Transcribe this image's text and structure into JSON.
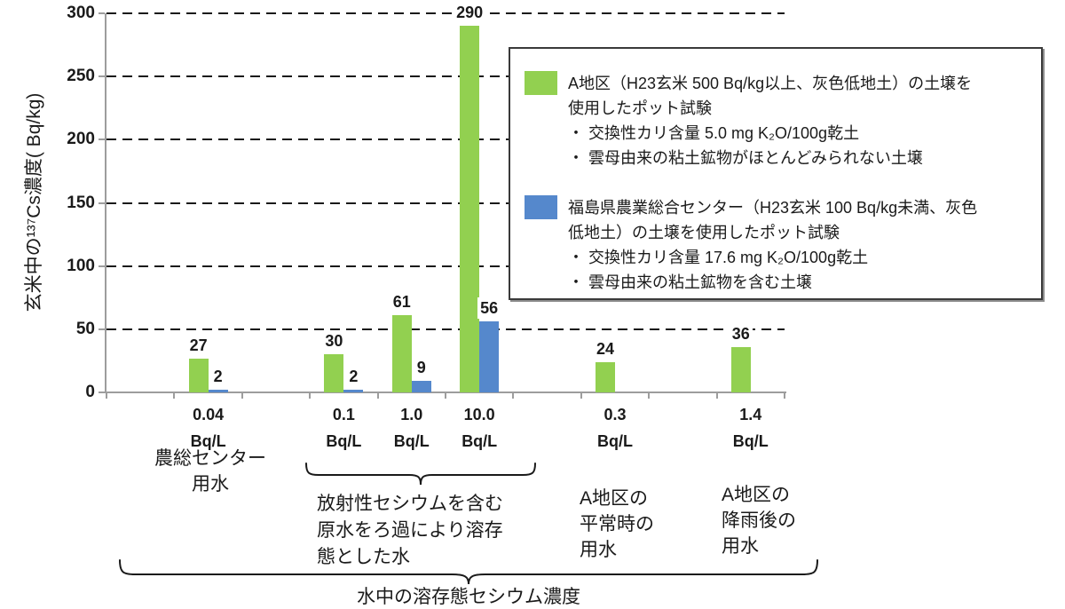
{
  "chart_data": {
    "type": "bar",
    "title": "",
    "ylabel": "玄米中の¹³⁷Cs濃度( Bq/kg)",
    "xlabel": "",
    "ylim": [
      0,
      300
    ],
    "yticks": [
      0,
      50,
      100,
      150,
      200,
      250,
      300
    ],
    "grid": "horizontal-dashed",
    "legend_position": "top-right-box",
    "slots": 10,
    "categories": [
      {
        "slot": 2,
        "tick_label": [
          "0.04",
          "Bq/L"
        ]
      },
      {
        "slot": 4,
        "tick_label": [
          "0.1",
          "Bq/L"
        ]
      },
      {
        "slot": 5,
        "tick_label": [
          "1.0",
          "Bq/L"
        ]
      },
      {
        "slot": 6,
        "tick_label": [
          "10.0",
          "Bq/L"
        ]
      },
      {
        "slot": 8,
        "tick_label": [
          "0.3",
          "Bq/L"
        ]
      },
      {
        "slot": 10,
        "tick_label": [
          "1.4",
          "Bq/L"
        ]
      }
    ],
    "series": [
      {
        "name": "A地区の土壌を使用したポット試験",
        "color": "#92D050",
        "values": [
          27,
          30,
          61,
          290,
          24,
          36
        ]
      },
      {
        "name": "福島県農業総合センターの土壌を使用したポット試験",
        "color": "#5588CC",
        "values": [
          2,
          2,
          9,
          56,
          null,
          null
        ]
      }
    ]
  },
  "annotations": {
    "group_nosoh": {
      "lines": [
        "農総センター",
        "用水"
      ]
    },
    "group_filtered": {
      "lines": [
        "放射性セシウムを含む",
        "原水をろ過により溶存",
        "態とした水"
      ]
    },
    "group_normal": {
      "lines": [
        "A地区の",
        "平常時の",
        "用水"
      ]
    },
    "group_rain": {
      "lines": [
        "A地区の",
        "降雨後の",
        "用水"
      ]
    },
    "bottom_label": "水中の溶存態セシウム濃度"
  },
  "legend": {
    "entries": [
      {
        "color": "#92D050",
        "lines": [
          "A地区（H23玄米 500 Bq/kg以上、灰色低地土）の土壌を",
          "使用したポット試験",
          "・ 交換性カリ含量 5.0 mg K₂O/100g乾土",
          "・ 雲母由来の粘土鉱物がほとんどみられない土壌"
        ]
      },
      {
        "color": "#5588CC",
        "lines": [
          "福島県農業総合センター（H23玄米 100 Bq/kg未満、灰色",
          "低地土）の土壌を使用したポット試験",
          "・ 交換性カリ含量 17.6 mg K₂O/100g乾土",
          "・ 雲母由来の粘土鉱物を含む土壌"
        ]
      }
    ]
  }
}
